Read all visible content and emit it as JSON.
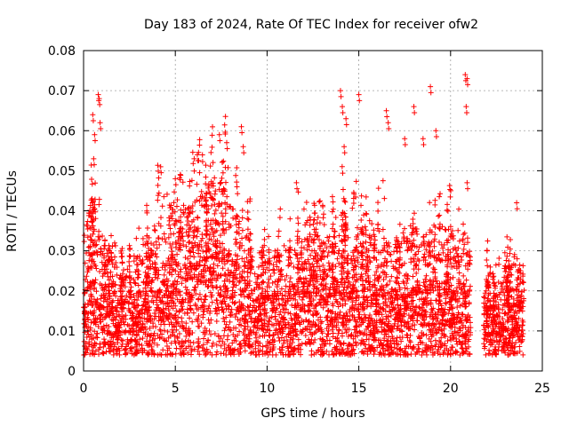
{
  "chart_data": {
    "type": "scatter",
    "title": "Day 183 of 2024, Rate Of TEC Index for receiver ofw2",
    "xlabel": "GPS time / hours",
    "ylabel": "ROTI / TECUs",
    "xlim": [
      0,
      25
    ],
    "ylim": [
      0,
      0.08
    ],
    "xticks": [
      0,
      5,
      10,
      15,
      20,
      25
    ],
    "yticks": [
      0,
      0.01,
      0.02,
      0.03,
      0.04,
      0.05,
      0.06,
      0.07,
      0.08
    ],
    "ytick_labels": [
      "0",
      "0.01",
      "0.02",
      "0.03",
      "0.04",
      "0.05",
      "0.06",
      "0.07",
      "0.08"
    ],
    "grid": true,
    "marker": "plus",
    "color": "#ff0000",
    "density_profile": {
      "x": [
        0,
        0.5,
        1,
        1.5,
        2,
        2.5,
        3,
        3.5,
        4,
        4.5,
        5,
        5.5,
        6,
        6.5,
        7,
        7.5,
        8,
        8.5,
        9,
        9.5,
        10,
        10.5,
        11,
        11.5,
        12,
        12.5,
        13,
        13.5,
        14,
        14.5,
        15,
        15.5,
        16,
        16.5,
        17,
        17.5,
        18,
        18.5,
        19,
        19.5,
        20,
        20.5,
        21,
        21.5,
        22,
        22.5,
        23,
        23.5,
        24
      ],
      "median": [
        0.014,
        0.016,
        0.015,
        0.013,
        0.012,
        0.013,
        0.014,
        0.016,
        0.018,
        0.019,
        0.019,
        0.018,
        0.018,
        0.019,
        0.02,
        0.021,
        0.02,
        0.018,
        0.015,
        0.014,
        0.014,
        0.014,
        0.015,
        0.015,
        0.016,
        0.016,
        0.015,
        0.015,
        0.016,
        0.016,
        0.015,
        0.015,
        0.015,
        0.014,
        0.014,
        0.015,
        0.015,
        0.015,
        0.015,
        0.016,
        0.015,
        0.015,
        0.014,
        0.012,
        0.012,
        0.012,
        0.012,
        0.013,
        0.012
      ],
      "upper": [
        0.035,
        0.044,
        0.034,
        0.03,
        0.025,
        0.028,
        0.03,
        0.035,
        0.04,
        0.045,
        0.042,
        0.04,
        0.042,
        0.045,
        0.047,
        0.05,
        0.046,
        0.04,
        0.033,
        0.03,
        0.03,
        0.03,
        0.032,
        0.032,
        0.035,
        0.035,
        0.033,
        0.034,
        0.04,
        0.038,
        0.036,
        0.034,
        0.036,
        0.034,
        0.033,
        0.035,
        0.037,
        0.036,
        0.035,
        0.037,
        0.036,
        0.035,
        0.034,
        0.025,
        0.025,
        0.024,
        0.024,
        0.03,
        0.024
      ]
    },
    "outliers": [
      {
        "x": 0.5,
        "y": 0.064
      },
      {
        "x": 0.6,
        "y": 0.059
      },
      {
        "x": 0.55,
        "y": 0.053
      },
      {
        "x": 0.8,
        "y": 0.069
      },
      {
        "x": 0.85,
        "y": 0.068
      },
      {
        "x": 0.9,
        "y": 0.062
      },
      {
        "x": 4.2,
        "y": 0.051
      },
      {
        "x": 5.0,
        "y": 0.048
      },
      {
        "x": 6.2,
        "y": 0.054
      },
      {
        "x": 7.4,
        "y": 0.059
      },
      {
        "x": 7.8,
        "y": 0.057
      },
      {
        "x": 8.6,
        "y": 0.061
      },
      {
        "x": 8.7,
        "y": 0.056
      },
      {
        "x": 11.6,
        "y": 0.047
      },
      {
        "x": 14.0,
        "y": 0.07
      },
      {
        "x": 14.1,
        "y": 0.066
      },
      {
        "x": 14.3,
        "y": 0.063
      },
      {
        "x": 14.2,
        "y": 0.056
      },
      {
        "x": 15.0,
        "y": 0.069
      },
      {
        "x": 16.5,
        "y": 0.065
      },
      {
        "x": 16.6,
        "y": 0.062
      },
      {
        "x": 17.5,
        "y": 0.058
      },
      {
        "x": 18.0,
        "y": 0.066
      },
      {
        "x": 18.5,
        "y": 0.058
      },
      {
        "x": 18.9,
        "y": 0.071
      },
      {
        "x": 19.2,
        "y": 0.06
      },
      {
        "x": 20.8,
        "y": 0.074
      },
      {
        "x": 20.9,
        "y": 0.073
      },
      {
        "x": 20.85,
        "y": 0.066
      },
      {
        "x": 20.9,
        "y": 0.047
      },
      {
        "x": 23.6,
        "y": 0.042
      }
    ],
    "gaps": [
      [
        21.1,
        21.8
      ],
      [
        24.0,
        25.0
      ]
    ]
  }
}
